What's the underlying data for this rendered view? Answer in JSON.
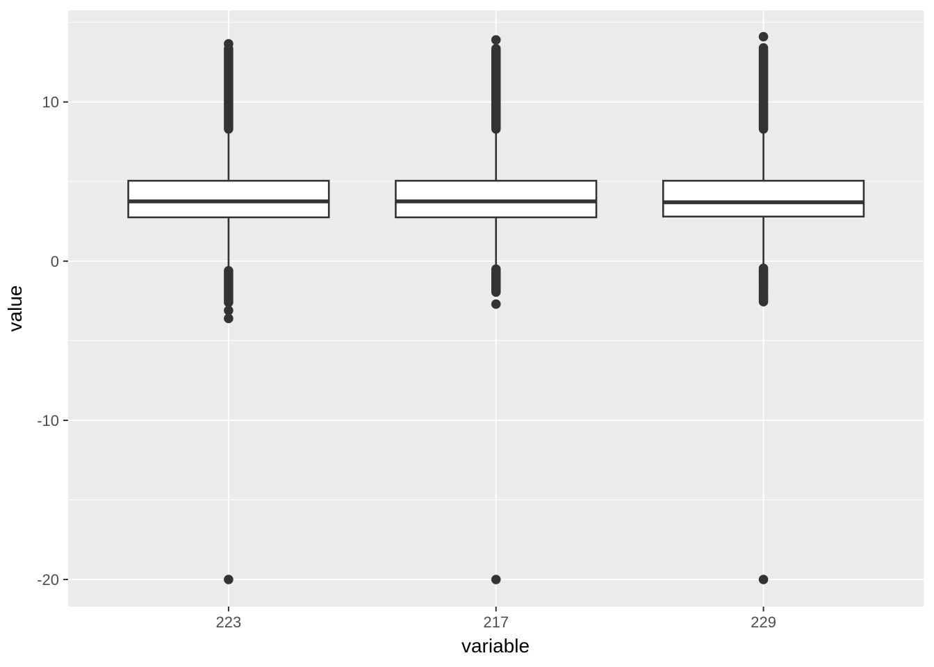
{
  "chart_data": {
    "type": "boxplot",
    "title": "",
    "xlabel": "variable",
    "ylabel": "value",
    "categories": [
      "223",
      "217",
      "229"
    ],
    "ylim": [
      -21.7,
      15.75
    ],
    "yticks_major": [
      10,
      0,
      -10,
      -20
    ],
    "yticks_minor": [
      15,
      5,
      -5,
      -15
    ],
    "legend": "none",
    "grid": "white major and minor horizontal/vertical gridlines on grey panel",
    "series": [
      {
        "category": "223",
        "q1": 2.75,
        "median": 3.75,
        "q3": 5.05,
        "whisker_low": -0.35,
        "whisker_high": 8.25,
        "outlier_clusters_high": [
          [
            8.3,
            13.35
          ]
        ],
        "outlier_dots_high": [
          13.65
        ],
        "outlier_clusters_low": [
          [
            -0.6,
            -2.6
          ]
        ],
        "outlier_dots_low": [
          -3.1,
          -3.6,
          -20
        ]
      },
      {
        "category": "217",
        "q1": 2.75,
        "median": 3.75,
        "q3": 5.05,
        "whisker_low": -0.3,
        "whisker_high": 8.25,
        "outlier_clusters_high": [
          [
            8.3,
            13.35
          ]
        ],
        "outlier_dots_high": [
          13.9
        ],
        "outlier_clusters_low": [
          [
            -0.5,
            -1.95
          ]
        ],
        "outlier_dots_low": [
          -2.7,
          -20
        ]
      },
      {
        "category": "229",
        "q1": 2.8,
        "median": 3.7,
        "q3": 5.05,
        "whisker_low": -0.3,
        "whisker_high": 8.25,
        "outlier_clusters_high": [
          [
            8.3,
            13.4
          ]
        ],
        "outlier_dots_high": [
          14.1
        ],
        "outlier_clusters_low": [
          [
            -0.45,
            -1.85
          ],
          [
            -2.0,
            -2.55
          ]
        ],
        "outlier_dots_low": [
          -20
        ]
      }
    ],
    "colors": {
      "panel_background": "#EBEBEB",
      "grid": "#FFFFFF",
      "box_fill": "#FFFFFF",
      "box_stroke": "#333333",
      "outlier": "#333333",
      "tick_mark": "#333333",
      "tick_label": "#4D4D4D",
      "axis_title": "#000000",
      "figure_background": "#FFFFFF"
    }
  }
}
